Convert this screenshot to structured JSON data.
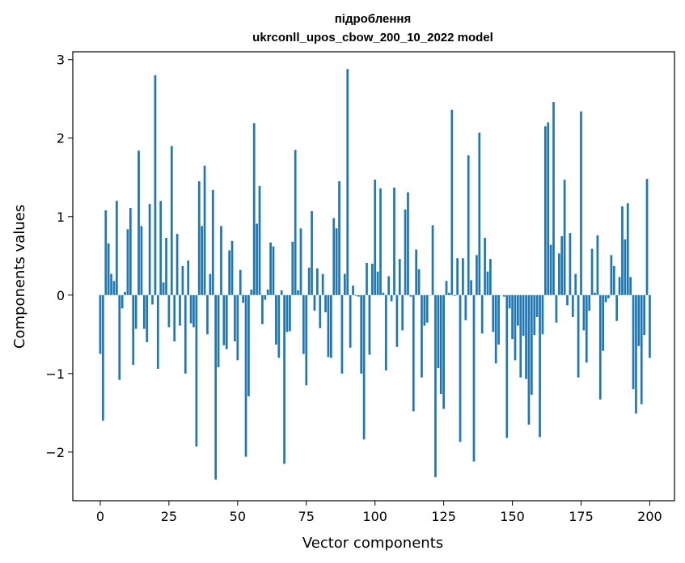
{
  "chart_data": {
    "type": "bar",
    "title": "підроблення",
    "subtitle": "ukrconll_upos_cbow_200_10_2022 model",
    "xlabel": "Vector components",
    "ylabel": "Components values",
    "xlim": [
      -10,
      209
    ],
    "ylim": [
      -2.62,
      3.1
    ],
    "xticks": [
      0,
      25,
      50,
      75,
      100,
      125,
      150,
      175,
      200
    ],
    "yticks": [
      -2,
      -1,
      0,
      1,
      2,
      3
    ],
    "ytick_labels": [
      "−2",
      "−1",
      "0",
      "1",
      "2",
      "3"
    ],
    "grid": false,
    "bar_color": "#1f77b4",
    "values": [
      -0.75,
      -1.6,
      1.08,
      0.66,
      0.27,
      0.18,
      1.2,
      -1.08,
      -0.17,
      0.04,
      0.84,
      1.11,
      -0.89,
      -0.43,
      1.84,
      0.88,
      -0.43,
      -0.6,
      1.16,
      -0.12,
      2.8,
      -0.94,
      1.2,
      0.16,
      0.73,
      -0.41,
      1.9,
      -0.59,
      0.78,
      -0.39,
      0.37,
      -1.0,
      0.44,
      -0.36,
      -0.41,
      -1.93,
      1.45,
      0.88,
      1.65,
      -0.5,
      0.27,
      1.34,
      -2.35,
      -0.92,
      0.88,
      -0.64,
      -0.69,
      0.57,
      0.69,
      -0.59,
      -0.83,
      0.32,
      -0.1,
      -2.06,
      -1.29,
      0.07,
      2.19,
      0.91,
      1.39,
      -0.37,
      -0.06,
      0.07,
      0.67,
      0.62,
      -0.63,
      -0.8,
      0.06,
      -2.15,
      -0.47,
      -0.46,
      0.68,
      1.85,
      0.06,
      0.85,
      -0.75,
      -1.15,
      0.35,
      1.07,
      -0.2,
      0.34,
      -0.42,
      0.27,
      -0.22,
      -0.79,
      -0.8,
      0.98,
      0.85,
      1.45,
      -1.0,
      0.27,
      2.88,
      -0.67,
      0.12,
      -0.01,
      -0.02,
      -1.0,
      -1.84,
      0.41,
      -0.76,
      0.4,
      1.47,
      0.3,
      1.36,
      0.03,
      -0.96,
      0.24,
      -0.08,
      1.37,
      -0.66,
      0.46,
      -0.45,
      1.09,
      1.31,
      -0.02,
      -1.48,
      0.58,
      0.33,
      -1.05,
      -0.39,
      -0.35,
      0.0,
      0.89,
      -2.32,
      -0.93,
      -1.26,
      -1.45,
      0.18,
      0.03,
      2.36,
      -0.01,
      0.47,
      -1.87,
      0.47,
      -0.32,
      1.78,
      0.19,
      -2.12,
      0.51,
      2.07,
      -0.49,
      0.73,
      0.3,
      0.46,
      -0.47,
      -0.87,
      -0.63,
      0.0,
      -0.02,
      -1.82,
      -0.17,
      -0.56,
      -0.83,
      -0.39,
      -1.05,
      -0.52,
      -1.07,
      -1.65,
      -1.27,
      -0.51,
      -0.28,
      -1.81,
      -0.5,
      2.15,
      2.2,
      0.64,
      2.46,
      -0.35,
      0.53,
      0.75,
      1.47,
      -0.13,
      0.79,
      -0.28,
      0.27,
      -1.05,
      2.34,
      -0.45,
      -0.86,
      -0.2,
      0.59,
      0.03,
      0.76,
      -1.33,
      -0.71,
      -0.09,
      -0.04,
      0.51,
      0.37,
      -0.33,
      0.23,
      1.13,
      0.71,
      1.17,
      0.23,
      -1.2,
      -1.51,
      -0.65,
      -1.39,
      -0.51,
      1.48,
      -0.8
    ]
  }
}
